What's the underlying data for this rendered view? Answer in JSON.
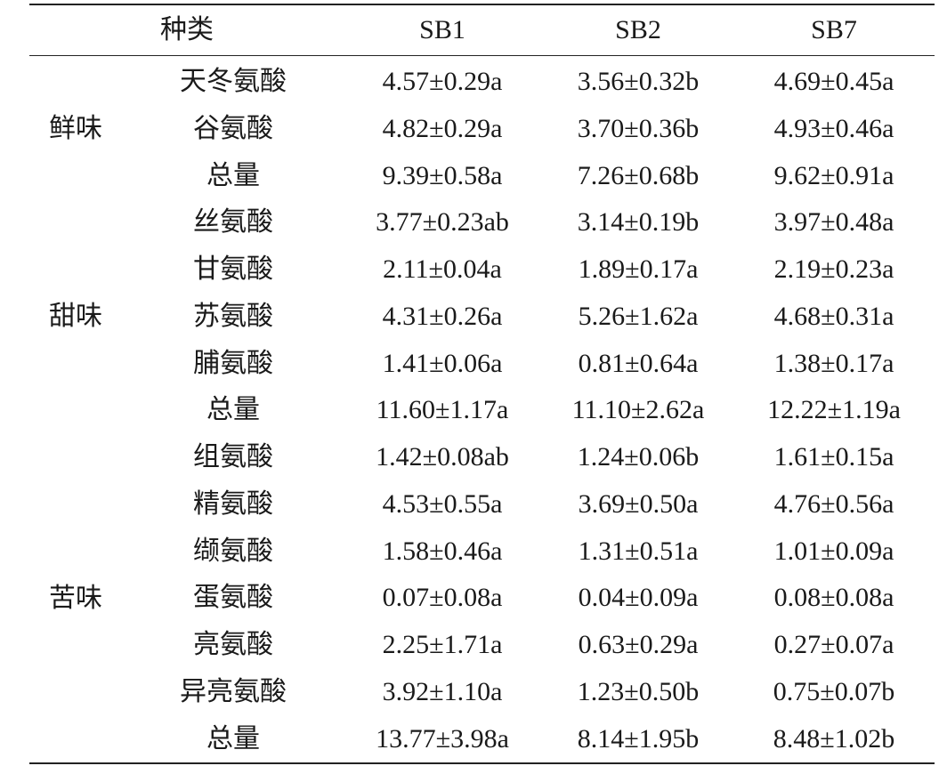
{
  "header": [
    "种类",
    "SB1",
    "SB2",
    "SB7"
  ],
  "groups": [
    {
      "name": "鲜味",
      "rows": [
        [
          "天冬氨酸",
          "4.57±0.29a",
          "3.56±0.32b",
          "4.69±0.45a"
        ],
        [
          "谷氨酸",
          "4.82±0.29a",
          "3.70±0.36b",
          "4.93±0.46a"
        ],
        [
          "总量",
          "9.39±0.58a",
          "7.26±0.68b",
          "9.62±0.91a"
        ]
      ]
    },
    {
      "name": "甜味",
      "rows": [
        [
          "丝氨酸",
          "3.77±0.23ab",
          "3.14±0.19b",
          "3.97±0.48a"
        ],
        [
          "甘氨酸",
          "2.11±0.04a",
          "1.89±0.17a",
          "2.19±0.23a"
        ],
        [
          "苏氨酸",
          "4.31±0.26a",
          "5.26±1.62a",
          "4.68±0.31a"
        ],
        [
          "脯氨酸",
          "1.41±0.06a",
          "0.81±0.64a",
          "1.38±0.17a"
        ],
        [
          "总量",
          "11.60±1.17a",
          "11.10±2.62a",
          "12.22±1.19a"
        ]
      ]
    },
    {
      "name": "苦味",
      "rows": [
        [
          "组氨酸",
          "1.42±0.08ab",
          "1.24±0.06b",
          "1.61±0.15a"
        ],
        [
          "精氨酸",
          "4.53±0.55a",
          "3.69±0.50a",
          "4.76±0.56a"
        ],
        [
          "缬氨酸",
          "1.58±0.46a",
          "1.31±0.51a",
          "1.01±0.09a"
        ],
        [
          "蛋氨酸",
          "0.07±0.08a",
          "0.04±0.09a",
          "0.08±0.08a"
        ],
        [
          "亮氨酸",
          "2.25±1.71a",
          "0.63±0.29a",
          "0.27±0.07a"
        ],
        [
          "异亮氨酸",
          "3.92±1.10a",
          "1.23±0.50b",
          "0.75±0.07b"
        ],
        [
          "总量",
          "13.77±3.98a",
          "8.14±1.95b",
          "8.48±1.02b"
        ]
      ]
    }
  ]
}
